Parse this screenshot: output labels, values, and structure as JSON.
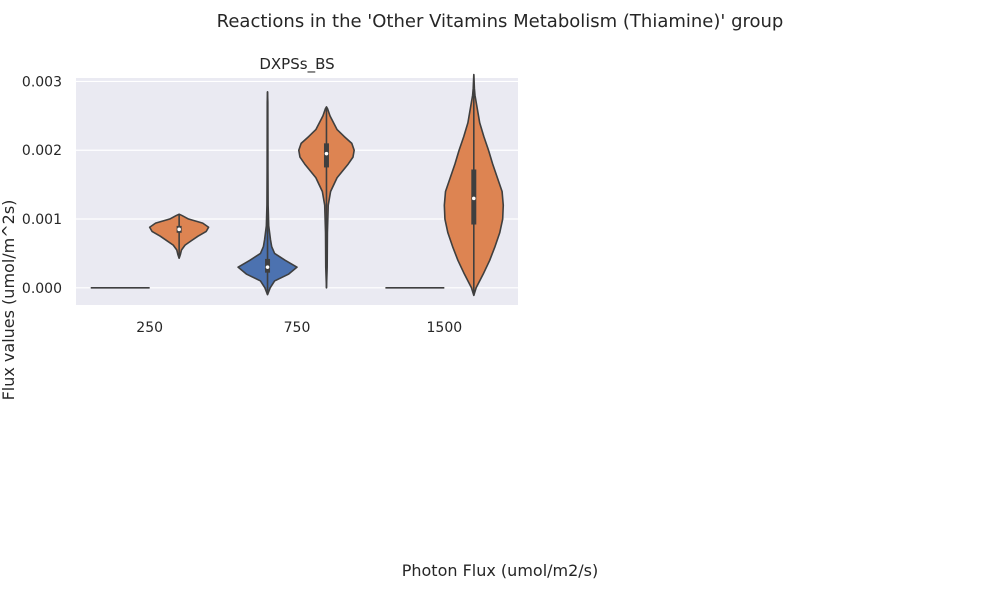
{
  "chart_data": {
    "type": "violin",
    "title": "Reactions in the 'Other Vitamins Metabolism (Thiamine)' group",
    "subplot_title": "DXPSs_BS",
    "xlabel": "Photon Flux (umol/m2/s)",
    "ylabel": "Flux values (umol/m^2s)",
    "categories": [
      "250",
      "750",
      "1500"
    ],
    "ylim": [
      -0.00025,
      0.00305
    ],
    "yticks": [
      0.0,
      0.001,
      0.002,
      0.003
    ],
    "ytick_labels": [
      "0.000",
      "0.001",
      "0.002",
      "0.003"
    ],
    "grid": true,
    "background": "#eaeaf2",
    "series": [
      {
        "color": "#4c72b0",
        "groups": [
          {
            "category": "250",
            "flat": true,
            "value": 0.0
          },
          {
            "category": "750",
            "flat": false,
            "min": -0.0001,
            "max": 0.00285,
            "q1": 0.00022,
            "median": 0.0003,
            "q3": 0.00042,
            "density": [
              [
                -0.0001,
                0.0
              ],
              [
                0.0,
                0.045
              ],
              [
                0.0001,
                0.12
              ],
              [
                0.0002,
                0.36
              ],
              [
                0.0003,
                0.5
              ],
              [
                0.0004,
                0.3
              ],
              [
                0.0005,
                0.12
              ],
              [
                0.0006,
                0.07
              ],
              [
                0.0007,
                0.05
              ],
              [
                0.0008,
                0.035
              ],
              [
                0.0009,
                0.02
              ],
              [
                0.0012,
                0.01
              ],
              [
                0.0017,
                0.007
              ],
              [
                0.0022,
                0.006
              ],
              [
                0.0027,
                0.005
              ],
              [
                0.00285,
                0.0
              ]
            ]
          },
          {
            "category": "1500",
            "flat": true,
            "value": 0.0
          }
        ]
      },
      {
        "color": "#dd8452",
        "groups": [
          {
            "category": "250",
            "flat": false,
            "min": 0.00043,
            "max": 0.00107,
            "q1": 0.0008,
            "median": 0.00085,
            "q3": 0.0009,
            "density": [
              [
                0.00043,
                0.0
              ],
              [
                0.00048,
                0.02
              ],
              [
                0.00055,
                0.04
              ],
              [
                0.00062,
                0.1
              ],
              [
                0.00068,
                0.2
              ],
              [
                0.00075,
                0.32
              ],
              [
                0.00082,
                0.46
              ],
              [
                0.00088,
                0.5
              ],
              [
                0.00094,
                0.4
              ],
              [
                0.001,
                0.16
              ],
              [
                0.00105,
                0.05
              ],
              [
                0.00107,
                0.0
              ]
            ]
          },
          {
            "category": "750",
            "flat": false,
            "min": 0.0,
            "max": 0.00263,
            "q1": 0.00175,
            "median": 0.00195,
            "q3": 0.0021,
            "density": [
              [
                0.0,
                0.0
              ],
              [
                0.0003,
                0.012
              ],
              [
                0.0008,
                0.016
              ],
              [
                0.0012,
                0.03
              ],
              [
                0.0014,
                0.07
              ],
              [
                0.0016,
                0.18
              ],
              [
                0.0018,
                0.37
              ],
              [
                0.0019,
                0.45
              ],
              [
                0.002,
                0.47
              ],
              [
                0.0021,
                0.43
              ],
              [
                0.0022,
                0.3
              ],
              [
                0.0023,
                0.18
              ],
              [
                0.0024,
                0.12
              ],
              [
                0.0025,
                0.06
              ],
              [
                0.0026,
                0.02
              ],
              [
                0.00263,
                0.0
              ]
            ]
          },
          {
            "category": "1500",
            "flat": false,
            "min": -0.00011,
            "max": 0.0031,
            "q1": 0.00092,
            "median": 0.0013,
            "q3": 0.00172,
            "density": [
              [
                -0.00011,
                0.0
              ],
              [
                0.0,
                0.04
              ],
              [
                0.0002,
                0.16
              ],
              [
                0.0004,
                0.27
              ],
              [
                0.0006,
                0.36
              ],
              [
                0.0008,
                0.44
              ],
              [
                0.001,
                0.49
              ],
              [
                0.0012,
                0.5
              ],
              [
                0.0014,
                0.48
              ],
              [
                0.0016,
                0.4
              ],
              [
                0.0018,
                0.32
              ],
              [
                0.002,
                0.25
              ],
              [
                0.0022,
                0.17
              ],
              [
                0.0024,
                0.1
              ],
              [
                0.0026,
                0.06
              ],
              [
                0.0028,
                0.02
              ],
              [
                0.0029,
                0.01
              ],
              [
                0.0031,
                0.0
              ]
            ]
          }
        ]
      }
    ]
  }
}
